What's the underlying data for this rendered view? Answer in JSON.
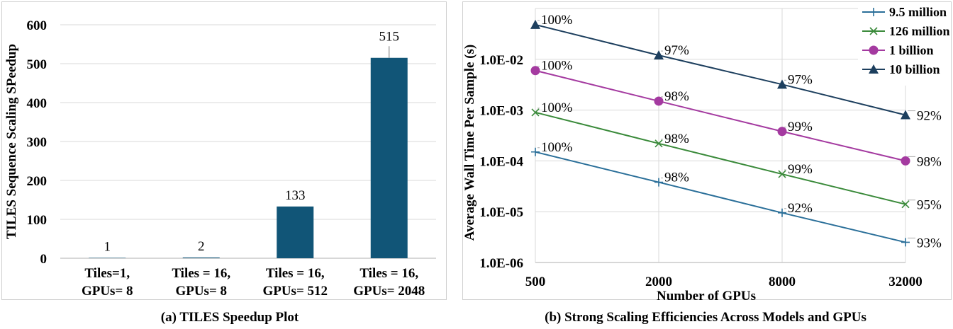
{
  "chart_data": [
    {
      "type": "bar",
      "title": "",
      "caption": "(a) TILES Speedup Plot",
      "ylabel": "TILES Sequence Scaling SPeedup",
      "xlabel": "",
      "categories": [
        [
          "Tiles=1,",
          "GPUs= 8"
        ],
        [
          "Tiles = 16,",
          "GPUs= 8"
        ],
        [
          "Tiles = 16,",
          "GPUs= 512"
        ],
        [
          "Tiles = 16,",
          "GPUs= 2048"
        ]
      ],
      "values": [
        1,
        2,
        133,
        515
      ],
      "value_labels": [
        "1",
        "2",
        "133",
        "515"
      ],
      "error_bars": [
        0,
        0,
        0,
        30
      ],
      "ylim": [
        0,
        600
      ],
      "yticks": [
        0,
        100,
        200,
        300,
        400,
        500,
        600
      ],
      "bar_color": "#115577",
      "grid": true
    },
    {
      "type": "line",
      "title": "",
      "caption": "(b) Strong Scaling Efficiencies Across Models and GPUs",
      "xlabel": "Number of GPUs",
      "ylabel": "Average Wall Time Per Sample (s)",
      "xscale": "log",
      "yscale": "log",
      "x": [
        500,
        2000,
        8000,
        32000
      ],
      "xticks": [
        "500",
        "2000",
        "8000",
        "32000"
      ],
      "ylim": [
        1e-06,
        0.1
      ],
      "yticks": [
        "1.0E-06",
        "1.0E-05",
        "1.0E-04",
        "1.0E-03",
        "1.0E-02"
      ],
      "legend_position": "top-right",
      "grid": true,
      "series": [
        {
          "name": "9.5 million",
          "marker": "plus",
          "color": "#2a6f99",
          "values": [
            0.00015,
            3.8e-05,
            9.5e-06,
            2.5e-06
          ],
          "labels": [
            "100%",
            "98%",
            "92%",
            "93%"
          ]
        },
        {
          "name": "126 million",
          "marker": "x",
          "color": "#3a8a3a",
          "values": [
            0.0009,
            0.00022,
            5.5e-05,
            1.4e-05
          ],
          "labels": [
            "100%",
            "98%",
            "99%",
            "95%"
          ]
        },
        {
          "name": "1 billion",
          "marker": "circle",
          "color": "#a43aa0",
          "values": [
            0.006,
            0.0015,
            0.00038,
            0.0001
          ],
          "labels": [
            "100%",
            "98%",
            "99%",
            "98%"
          ]
        },
        {
          "name": "10 billion",
          "marker": "triangle",
          "color": "#1d3f5e",
          "values": [
            0.048,
            0.012,
            0.0032,
            0.0008
          ],
          "labels": [
            "100%",
            "97%",
            "97%",
            "92%"
          ]
        }
      ]
    }
  ]
}
